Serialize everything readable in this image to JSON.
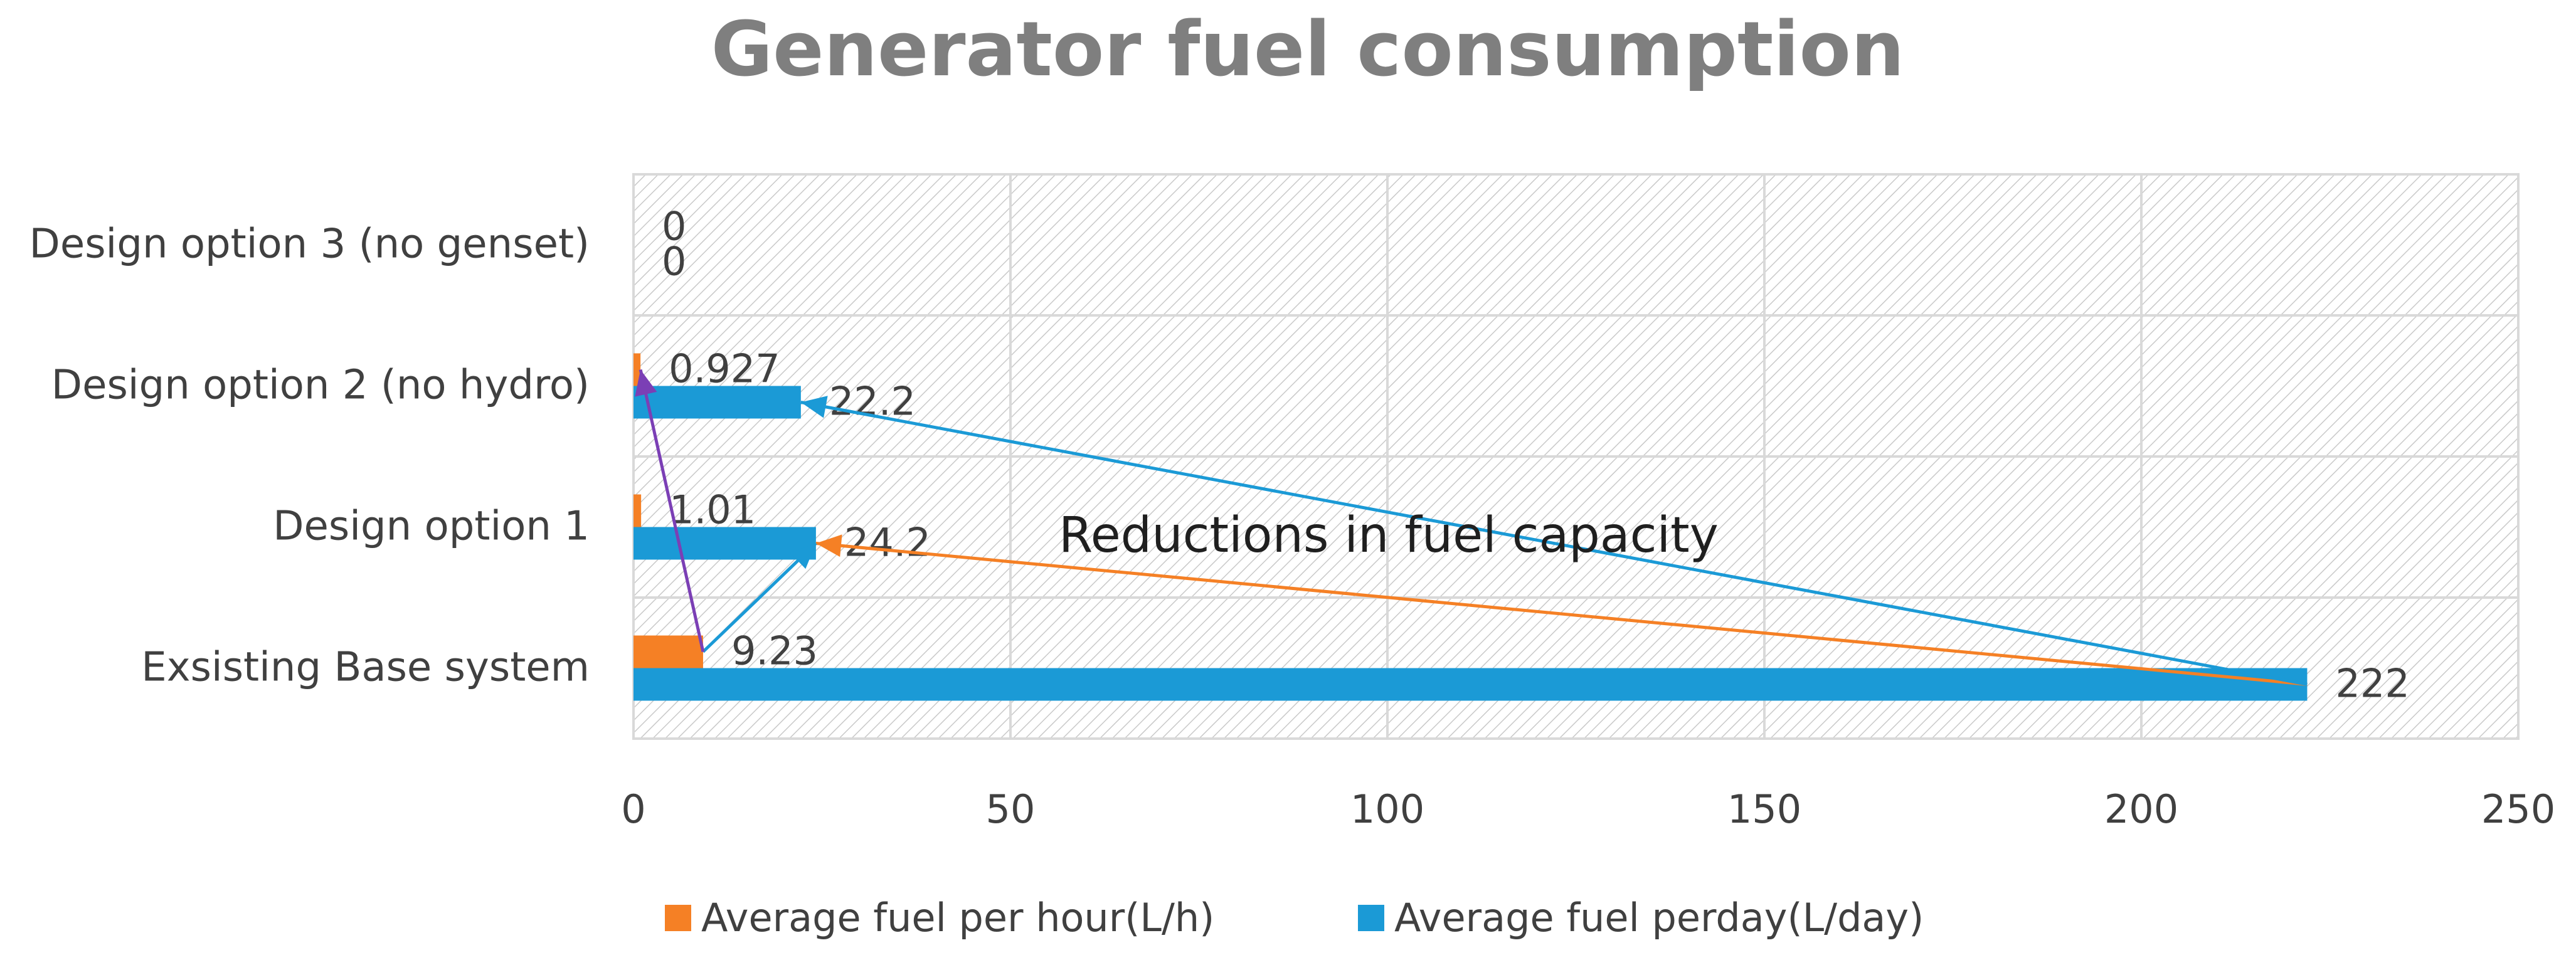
{
  "chart_data": {
    "type": "bar",
    "orientation": "horizontal",
    "title": "Generator fuel consumption",
    "categories": [
      "Exsisting Base system",
      "Design option 1",
      "Design option 2 (no hydro)",
      "Design option 3 (no genset)"
    ],
    "series": [
      {
        "name": "Average fuel per hour(L/h)",
        "color": "#F58025",
        "values": [
          9.23,
          1.01,
          0.927,
          0
        ],
        "labels": [
          "9.23",
          "1.01",
          "0.927",
          "0"
        ]
      },
      {
        "name": "Average fuel perday(L/day)",
        "color": "#1B9AD6",
        "values": [
          222,
          24.2,
          22.2,
          0
        ],
        "labels": [
          "222",
          "24.2",
          "22.2",
          "0"
        ]
      }
    ],
    "xlim": [
      0,
      250
    ],
    "xticks": [
      0,
      50,
      100,
      150,
      200,
      250
    ],
    "xtick_labels": [
      "0",
      "50",
      "100",
      "150",
      "200",
      "250"
    ],
    "grid": true,
    "plot_background": "diagonal hatch",
    "legend_position": "bottom",
    "annotation": "Reductions in fuel capacity",
    "arrows": [
      {
        "from_series": 1,
        "from_category": 0,
        "to_category": 1,
        "to_series": 1,
        "color": "#F58025"
      },
      {
        "from_series": 1,
        "from_category": 0,
        "to_category": 2,
        "to_series": 1,
        "color": "#1B9AD6"
      },
      {
        "from_series": 0,
        "from_category": 0,
        "to_category": 1,
        "to_series": 1,
        "color": "#1B9AD6"
      },
      {
        "from_series": 0,
        "from_category": 0,
        "to_category": 2,
        "to_series": 0,
        "color": "#7B3FB5"
      }
    ]
  }
}
